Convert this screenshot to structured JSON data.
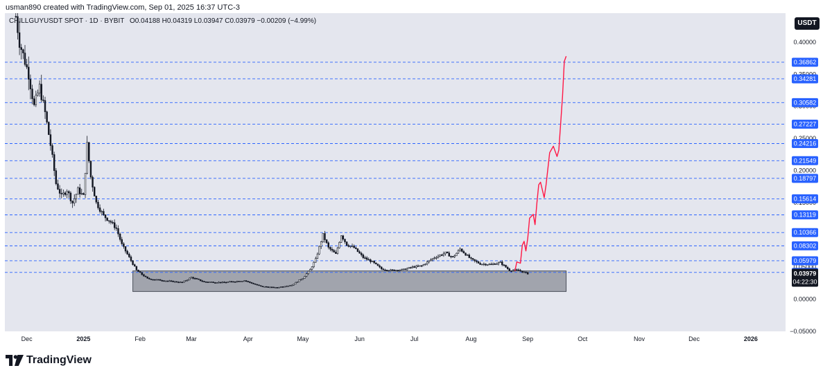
{
  "header": {
    "note": "usman890 created with TradingView.com, Sep 01, 2025 16:37 UTC-3"
  },
  "legend": {
    "symbol_text": "CHILLGUYUSDT SPOT · 1D · BYBIT",
    "ohlc_text": "O0.04188 H0.04319 L0.03947 C0.03979 −0.00209 (−4.99%)"
  },
  "currency_badge": "USDT",
  "footer": {
    "brand": "TradingView",
    "logo_icon": "tradingview-logo-icon"
  },
  "colors": {
    "background": "#ffffff",
    "plot_area": "#e4e6ee",
    "level_line": "#2962ff",
    "level_label_bg": "#2962ff",
    "projection": "#ff1744",
    "range_box": "#9598a1",
    "last_price_bg": "#131722",
    "candles": "#131722"
  },
  "chart_data": {
    "type": "candlestick",
    "symbol": "CHILLGUYUSDT",
    "exchange": "BYBIT",
    "timeframe": "1D",
    "last_price": 0.03979,
    "countdown": "04:22:30",
    "y_axis": {
      "ticks": [
        {
          "value": 0.4,
          "label": "0.40000"
        },
        {
          "value": 0.35,
          "label": "0.35000"
        },
        {
          "value": 0.3,
          "label": "0.30000"
        },
        {
          "value": 0.25,
          "label": "0.25000"
        },
        {
          "value": 0.2,
          "label": "0.20000"
        },
        {
          "value": 0.15,
          "label": "0.15000"
        },
        {
          "value": 0.1,
          "label": "0.10000"
        },
        {
          "value": 0.05,
          "label": "0.05000"
        },
        {
          "value": 0.0,
          "label": "0.00000"
        },
        {
          "value": -0.05,
          "label": "−0.05000"
        }
      ],
      "range": [
        -0.05,
        0.4
      ]
    },
    "x_axis": {
      "ticks": [
        "Dec",
        "2025",
        "Feb",
        "Mar",
        "Apr",
        "May",
        "Jun",
        "Jul",
        "Aug",
        "Sep",
        "Oct",
        "Nov",
        "Dec",
        "2026"
      ],
      "range": [
        "2024-11-19",
        "2026-01-20"
      ]
    },
    "horizontal_levels": [
      0.36862,
      0.34281,
      0.30582,
      0.27227,
      0.24216,
      0.21549,
      0.18797,
      0.15614,
      0.13119,
      0.10366,
      0.08302,
      0.05979,
      0.04172
    ],
    "level_labels": [
      "0.36862",
      "0.34281",
      "0.30582",
      "0.27227",
      "0.24216",
      "0.21549",
      "0.18797",
      "0.15614",
      "0.13119",
      "0.10366",
      "0.08302",
      "0.05979",
      "0.04172"
    ],
    "accumulation_box": {
      "x_start": "2025-01-28",
      "x_end": "2025-09-22",
      "y_low": 0.012,
      "y_high": 0.044
    },
    "price_path": [
      [
        "2024-11-25",
        0.44
      ],
      [
        "2024-11-27",
        0.4
      ],
      [
        "2024-11-30",
        0.37
      ],
      [
        "2024-12-02",
        0.35
      ],
      [
        "2024-12-05",
        0.3
      ],
      [
        "2024-12-08",
        0.33
      ],
      [
        "2024-12-11",
        0.29
      ],
      [
        "2024-12-14",
        0.24
      ],
      [
        "2024-12-17",
        0.18
      ],
      [
        "2024-12-20",
        0.16
      ],
      [
        "2024-12-23",
        0.17
      ],
      [
        "2024-12-26",
        0.15
      ],
      [
        "2024-12-29",
        0.17
      ],
      [
        "2025-01-01",
        0.16
      ],
      [
        "2025-01-03",
        0.24
      ],
      [
        "2025-01-05",
        0.19
      ],
      [
        "2025-01-08",
        0.15
      ],
      [
        "2025-01-12",
        0.13
      ],
      [
        "2025-01-16",
        0.12
      ],
      [
        "2025-01-19",
        0.11
      ],
      [
        "2025-01-22",
        0.085
      ],
      [
        "2025-01-26",
        0.065
      ],
      [
        "2025-01-30",
        0.045
      ],
      [
        "2025-02-05",
        0.032
      ],
      [
        "2025-02-14",
        0.029
      ],
      [
        "2025-02-24",
        0.026
      ],
      [
        "2025-03-01",
        0.034
      ],
      [
        "2025-03-08",
        0.027
      ],
      [
        "2025-03-18",
        0.026
      ],
      [
        "2025-03-30",
        0.029
      ],
      [
        "2025-04-08",
        0.02
      ],
      [
        "2025-04-16",
        0.018
      ],
      [
        "2025-04-25",
        0.022
      ],
      [
        "2025-05-01",
        0.033
      ],
      [
        "2025-05-05",
        0.046
      ],
      [
        "2025-05-08",
        0.062
      ],
      [
        "2025-05-12",
        0.1
      ],
      [
        "2025-05-15",
        0.08
      ],
      [
        "2025-05-19",
        0.07
      ],
      [
        "2025-05-22",
        0.1
      ],
      [
        "2025-05-25",
        0.085
      ],
      [
        "2025-05-29",
        0.08
      ],
      [
        "2025-06-03",
        0.065
      ],
      [
        "2025-06-08",
        0.058
      ],
      [
        "2025-06-13",
        0.047
      ],
      [
        "2025-06-18",
        0.045
      ],
      [
        "2025-06-25",
        0.046
      ],
      [
        "2025-06-30",
        0.05
      ],
      [
        "2025-07-05",
        0.052
      ],
      [
        "2025-07-12",
        0.065
      ],
      [
        "2025-07-18",
        0.072
      ],
      [
        "2025-07-22",
        0.065
      ],
      [
        "2025-07-26",
        0.078
      ],
      [
        "2025-08-01",
        0.062
      ],
      [
        "2025-08-06",
        0.055
      ],
      [
        "2025-08-12",
        0.054
      ],
      [
        "2025-08-17",
        0.057
      ],
      [
        "2025-08-22",
        0.045
      ],
      [
        "2025-08-27",
        0.045
      ],
      [
        "2025-09-01",
        0.03979
      ]
    ],
    "projection_path": [
      [
        "2025-08-25",
        0.044
      ],
      [
        "2025-08-26",
        0.058
      ],
      [
        "2025-08-28",
        0.056
      ],
      [
        "2025-08-29",
        0.084
      ],
      [
        "2025-08-30",
        0.09
      ],
      [
        "2025-08-31",
        0.075
      ],
      [
        "2025-09-01",
        0.095
      ],
      [
        "2025-09-02",
        0.126
      ],
      [
        "2025-09-04",
        0.132
      ],
      [
        "2025-09-05",
        0.116
      ],
      [
        "2025-09-06",
        0.15
      ],
      [
        "2025-09-07",
        0.178
      ],
      [
        "2025-09-08",
        0.182
      ],
      [
        "2025-09-10",
        0.158
      ],
      [
        "2025-09-11",
        0.178
      ],
      [
        "2025-09-13",
        0.228
      ],
      [
        "2025-09-15",
        0.238
      ],
      [
        "2025-09-17",
        0.222
      ],
      [
        "2025-09-18",
        0.232
      ],
      [
        "2025-09-20",
        0.315
      ],
      [
        "2025-09-21",
        0.37
      ],
      [
        "2025-09-22",
        0.378
      ]
    ]
  }
}
